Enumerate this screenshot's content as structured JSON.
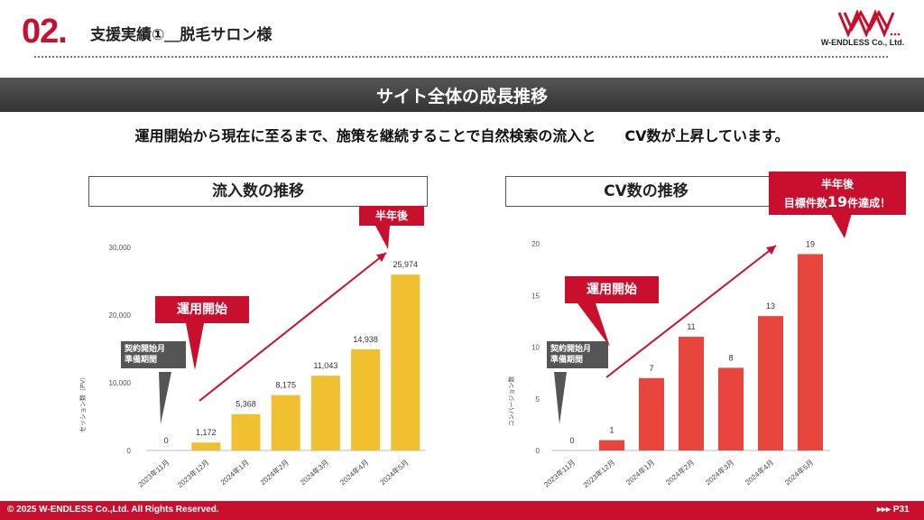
{
  "header": {
    "number": "02.",
    "title": "支援実績①＿脱毛サロン様",
    "logo_text": "W-ENDLESS Co., Ltd."
  },
  "banner": {
    "text": "サイト全体の成長推移"
  },
  "lead": {
    "text": "運用開始から現在に至るまで、施策を継続することで自然検索の流入と　　CV数が上昇しています。"
  },
  "left_panel": {
    "title": "流入数の推移",
    "callout_start": "運用開始",
    "callout_prep": "契約開始月\n準備期間",
    "callout_half": "半年後"
  },
  "right_panel": {
    "title": "CV数の推移",
    "callout_start": "運用開始",
    "callout_prep": "契約開始月\n準備期間",
    "callout_half_line1": "半年後",
    "callout_half_line2a": "目標件数",
    "callout_half_line2b": "19",
    "callout_half_line2c": "件達成！"
  },
  "colors": {
    "accent": "#c8102e",
    "left_bars": "#f0c030",
    "right_bars": "#e8453c"
  },
  "chart_data": [
    {
      "type": "bar",
      "categories": [
        "2023年11月",
        "2023年12月",
        "2024年1月",
        "2024年2月",
        "2024年3月",
        "2024年4月",
        "2024年5月"
      ],
      "values": [
        0,
        1172,
        5368,
        8175,
        11043,
        14938,
        25974
      ],
      "value_labels": [
        "0",
        "1,172",
        "5,368",
        "8,175",
        "11,043",
        "14,938",
        "25,974"
      ],
      "ylabel": "セッション数（PV）",
      "ylim": [
        0,
        30000
      ],
      "yticks": [
        0,
        10000,
        20000,
        30000
      ],
      "ytick_labels": [
        "0",
        "10,000",
        "20,000",
        "30,000"
      ]
    },
    {
      "type": "bar",
      "categories": [
        "2023年11月",
        "2023年12月",
        "2024年1月",
        "2024年2月",
        "2024年3月",
        "2024年4月",
        "2024年5月"
      ],
      "values": [
        0,
        1,
        7,
        11,
        8,
        13,
        19
      ],
      "value_labels": [
        "0",
        "1",
        "7",
        "11",
        "8",
        "13",
        "19"
      ],
      "ylabel": "コンバージョン数",
      "ylim": [
        0,
        20
      ],
      "yticks": [
        0,
        5,
        10,
        15,
        20
      ],
      "ytick_labels": [
        "0",
        "5",
        "10",
        "15",
        "20"
      ]
    }
  ],
  "footer": {
    "copyright": "© 2025 W-ENDLESS Co.,Ltd. All Rights Reserved.",
    "page": "▸▸▸ P31"
  }
}
